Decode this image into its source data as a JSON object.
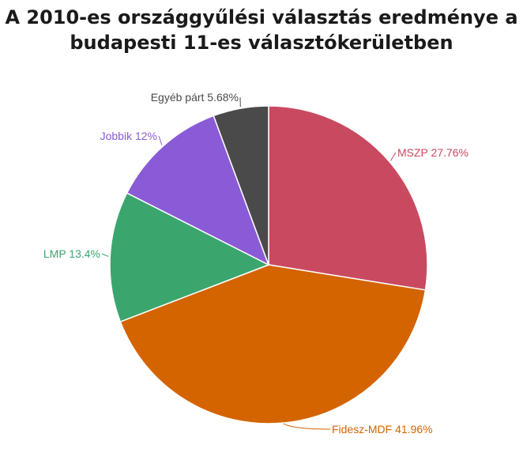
{
  "chart_data": {
    "type": "pie",
    "title": "A 2010-es országgyűlési választás eredménye a budapesti 11-es választókerületben",
    "title_lines": [
      "A 2010-es országgyűlési választás eredménye a",
      "budapesti 11-es választókerületben"
    ],
    "legend": "none",
    "slices": [
      {
        "label": "MSZP 27.76%",
        "value": 27.76,
        "color": "#c94a60"
      },
      {
        "label": "Fidesz-MDF 41.96%",
        "value": 41.96,
        "color": "#d46400"
      },
      {
        "label": "LMP 13.4%",
        "value": 13.4,
        "color": "#3aa66e"
      },
      {
        "label": "Jobbik 12%",
        "value": 12.0,
        "color": "#8a5bd6"
      },
      {
        "label": "Egyéb párt 5.68%",
        "value": 5.68,
        "color": "#4a4a4a"
      }
    ]
  }
}
